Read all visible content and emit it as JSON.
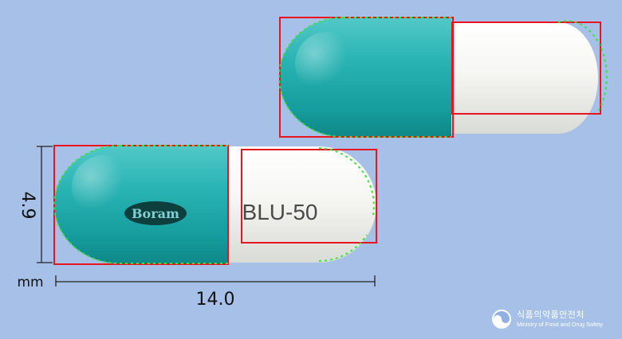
{
  "capsule_front": {
    "logo_text": "Boram",
    "imprint": "BLU-50"
  },
  "dimensions": {
    "height_value": "4.9",
    "width_value": "14.0",
    "unit": "mm"
  },
  "watermark": {
    "korean": "식품의약품안전처",
    "english": "Ministry of Food and Drug Safety"
  },
  "colors": {
    "background": "#a6c0e8",
    "cap_teal": "#1eaaaa",
    "body_white": "#f2f2ee",
    "box_red": "#e8141e",
    "contour_green": "#33e833"
  }
}
